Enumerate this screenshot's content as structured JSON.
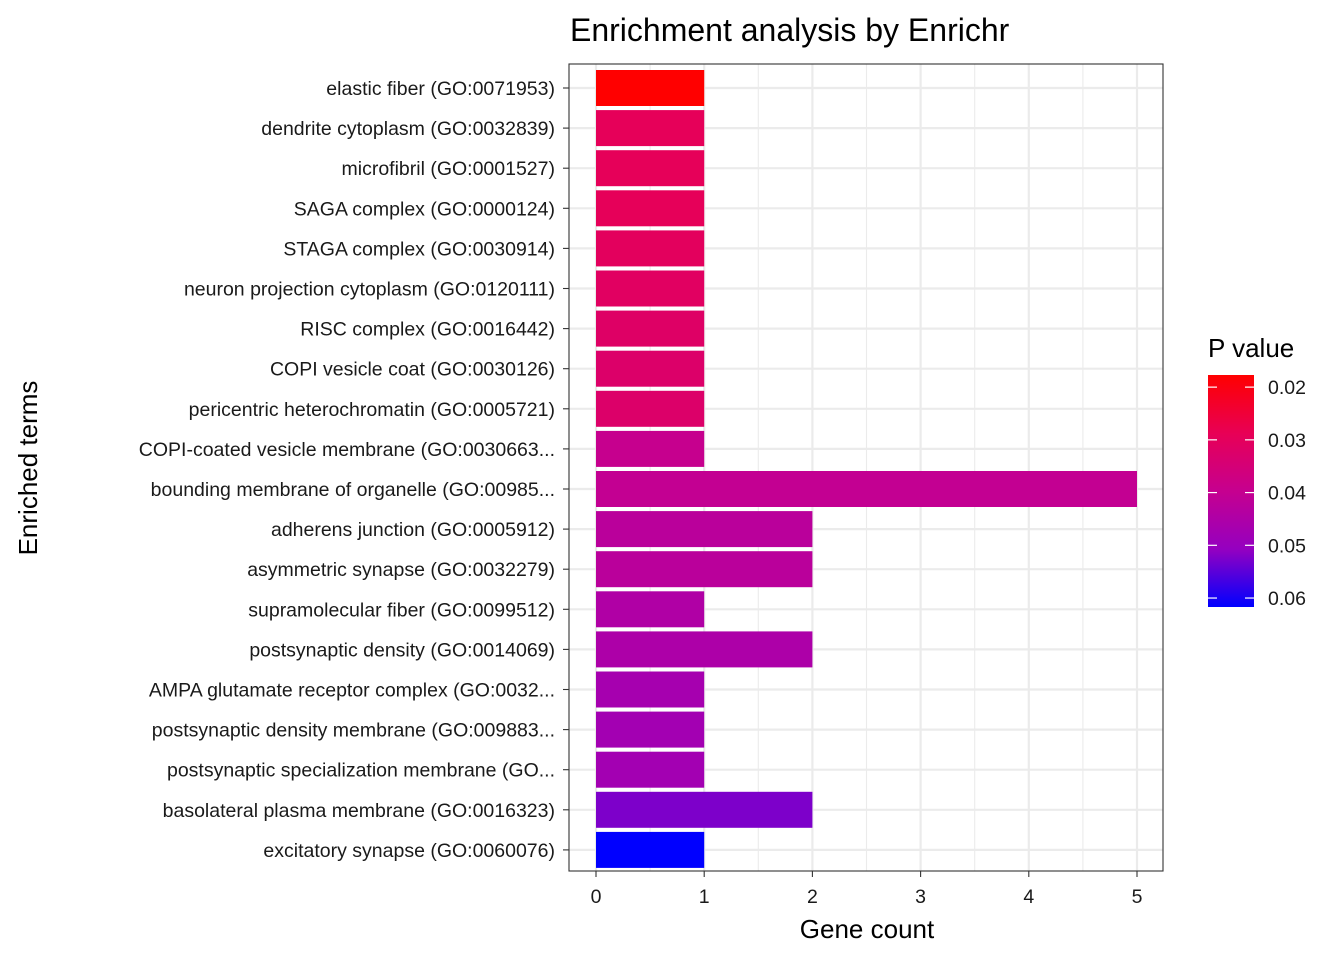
{
  "chart_data": {
    "type": "bar",
    "orientation": "horizontal",
    "title": "Enrichment analysis by Enrichr",
    "xlabel": "Gene count",
    "ylabel": "Enriched terms",
    "xlim": [
      0,
      5
    ],
    "x_ticks": [
      0,
      1,
      2,
      3,
      4,
      5
    ],
    "grid": true,
    "categories": [
      "elastic fiber (GO:0071953)",
      "dendrite cytoplasm (GO:0032839)",
      "microfibril (GO:0001527)",
      "SAGA complex (GO:0000124)",
      "STAGA complex (GO:0030914)",
      "neuron projection cytoplasm (GO:0120111)",
      "RISC complex (GO:0016442)",
      "COPI vesicle coat (GO:0030126)",
      "pericentric heterochromatin (GO:0005721)",
      "COPI-coated vesicle membrane (GO:0030663...",
      "bounding membrane of organelle (GO:00985...",
      "adherens junction (GO:0005912)",
      "asymmetric synapse (GO:0032279)",
      "supramolecular fiber (GO:0099512)",
      "postsynaptic density (GO:0014069)",
      "AMPA glutamate receptor complex (GO:0032...",
      "postsynaptic density membrane (GO:009883...",
      "postsynaptic specialization membrane (GO...",
      "basolateral plasma membrane (GO:0016323)",
      "excitatory synapse (GO:0060076)"
    ],
    "values": [
      1,
      1,
      1,
      1,
      1,
      1,
      1,
      1,
      1,
      1,
      5,
      2,
      2,
      1,
      2,
      1,
      1,
      1,
      2,
      1
    ],
    "p_values": [
      0.0177,
      0.0295,
      0.0295,
      0.0295,
      0.0303,
      0.031,
      0.0318,
      0.0325,
      0.0325,
      0.0396,
      0.0403,
      0.0425,
      0.0425,
      0.0446,
      0.0454,
      0.0468,
      0.0475,
      0.0475,
      0.0525,
      0.0617
    ],
    "color_scale": {
      "title": "P value",
      "low_color": "#FF0000",
      "high_color": "#0000FF",
      "range": [
        0.0177,
        0.0617
      ],
      "ticks": [
        0.02,
        0.03,
        0.04,
        0.05,
        0.06
      ],
      "tick_labels": [
        "0.02",
        "0.03",
        "0.04",
        "0.05",
        "0.06"
      ]
    },
    "legend_position": "right"
  }
}
